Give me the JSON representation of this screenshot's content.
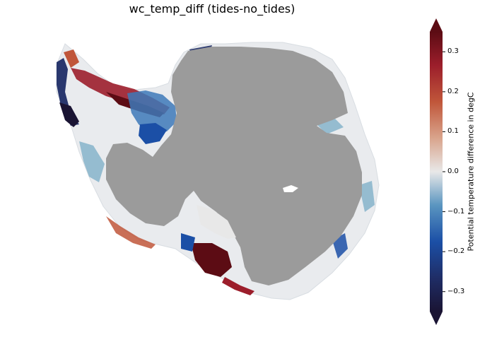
{
  "figure": {
    "title": "wc_temp_diff (tides-no_tides)"
  },
  "colorbar": {
    "label": "Potential temperature difference in degC",
    "ticks": [
      "0.3",
      "0.2",
      "0.1",
      "0.0",
      "−0.1",
      "−0.2",
      "−0.3"
    ],
    "tick_values": [
      0.3,
      0.2,
      0.1,
      0.0,
      -0.1,
      -0.2,
      -0.3
    ],
    "vmin": -0.35,
    "vmax": 0.35,
    "extend": "both",
    "colormap": [
      "#1a1433",
      "#1f2d66",
      "#1b4fa6",
      "#3d79b8",
      "#7fb0c8",
      "#e8e8e8",
      "#d9a48c",
      "#c0563a",
      "#9c1e2b",
      "#5c0c14"
    ]
  },
  "map": {
    "land_color": "#9b9b9b",
    "background": "#ffffff"
  }
}
